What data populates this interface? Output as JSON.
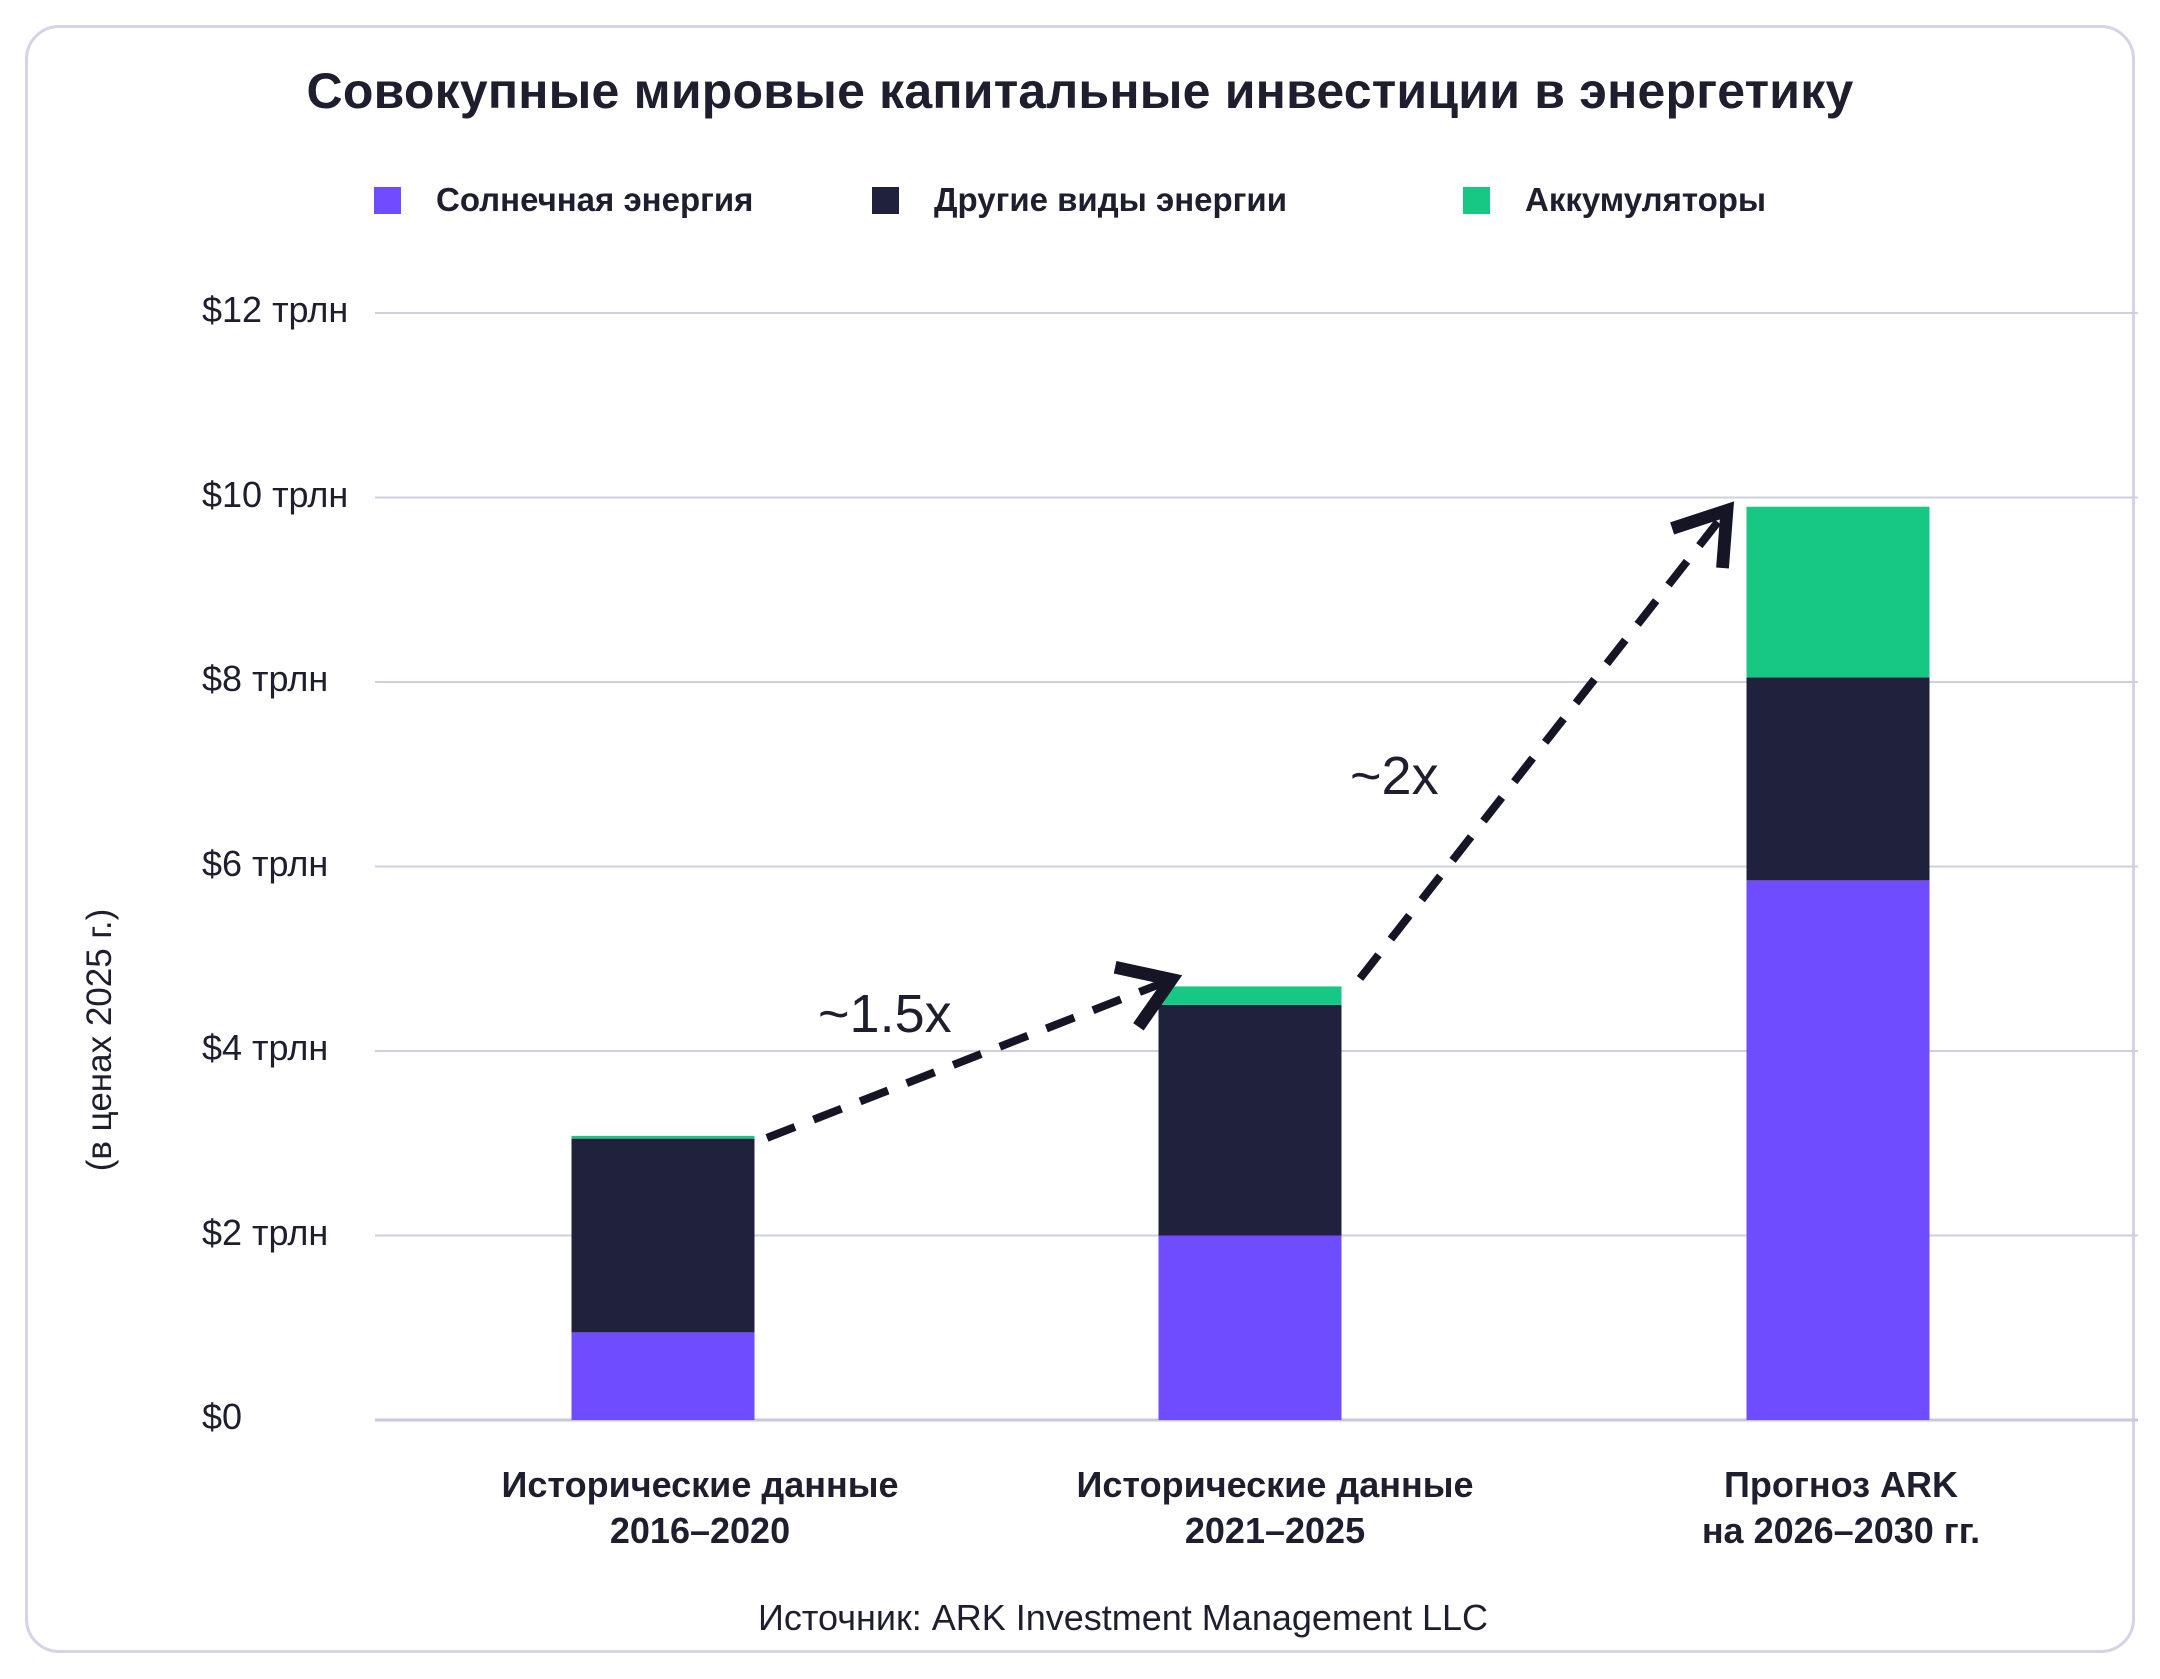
{
  "chart_data": {
    "type": "bar",
    "stacked": true,
    "title": "Совокупные мировые капитальные инвестиции в энергетику",
    "ylabel": "(в ценах 2025 г.)",
    "xlabel": "",
    "ylim": [
      0,
      12
    ],
    "yticks": [
      {
        "value": 0,
        "label": "$0"
      },
      {
        "value": 2,
        "label": "$2 трлн"
      },
      {
        "value": 4,
        "label": "$4 трлн"
      },
      {
        "value": 6,
        "label": "$6 трлн"
      },
      {
        "value": 8,
        "label": "$8 трлн"
      },
      {
        "value": 10,
        "label": "$10 трлн"
      },
      {
        "value": 12,
        "label": "$12 трлн"
      }
    ],
    "categories": [
      [
        "Исторические данные",
        "2016–2020"
      ],
      [
        "Исторические данные",
        "2021–2025"
      ],
      [
        "Прогноз ARK",
        "на 2026–2030 гг."
      ]
    ],
    "series": [
      {
        "name": "Солнечная энергия",
        "color": "#6f4cff",
        "values": [
          0.95,
          2.0,
          5.85
        ]
      },
      {
        "name": "Другие виды энергии",
        "color": "#20213d",
        "values": [
          2.1,
          2.5,
          2.2
        ]
      },
      {
        "name": "Аккумуляторы",
        "color": "#17c784",
        "values": [
          0.03,
          0.2,
          1.85
        ]
      }
    ],
    "annotations": [
      {
        "text": "~1.5x",
        "from_category": 0,
        "to_category": 1
      },
      {
        "text": "~2x",
        "from_category": 1,
        "to_category": 2
      }
    ],
    "legend_position": "top",
    "grid": true
  },
  "source": "Источник: ARK Investment Management LLC"
}
